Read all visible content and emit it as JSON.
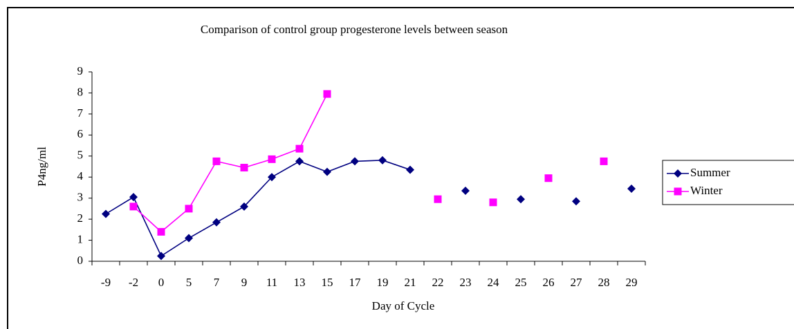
{
  "chart_data": {
    "type": "line",
    "title": "Comparison of control group progesterone levels between season",
    "x_label": "Day of Cycle",
    "y_label": "P4ng/ml",
    "categories": [
      "-9",
      "-2",
      "0",
      "5",
      "7",
      "9",
      "11",
      "13",
      "15",
      "17",
      "19",
      "21",
      "22",
      "23",
      "24",
      "25",
      "26",
      "27",
      "28",
      "29"
    ],
    "series": [
      {
        "name": "Summer",
        "color": "#000080",
        "marker": "diamond",
        "values": [
          2.25,
          3.05,
          0.25,
          1.1,
          1.85,
          2.6,
          4.0,
          4.75,
          4.25,
          4.75,
          4.8,
          4.35,
          null,
          3.35,
          null,
          2.95,
          null,
          2.85,
          null,
          3.45
        ]
      },
      {
        "name": "Winter",
        "color": "#ff00ff",
        "marker": "square",
        "values": [
          null,
          2.6,
          1.4,
          2.5,
          4.75,
          4.45,
          4.85,
          5.35,
          7.95,
          null,
          null,
          null,
          2.95,
          null,
          2.8,
          null,
          3.95,
          null,
          4.75,
          null
        ]
      }
    ],
    "ylim": [
      0,
      9
    ],
    "yticks": [
      0,
      1,
      2,
      3,
      4,
      5,
      6,
      7,
      8,
      9
    ],
    "grid": false,
    "legend": "right"
  }
}
